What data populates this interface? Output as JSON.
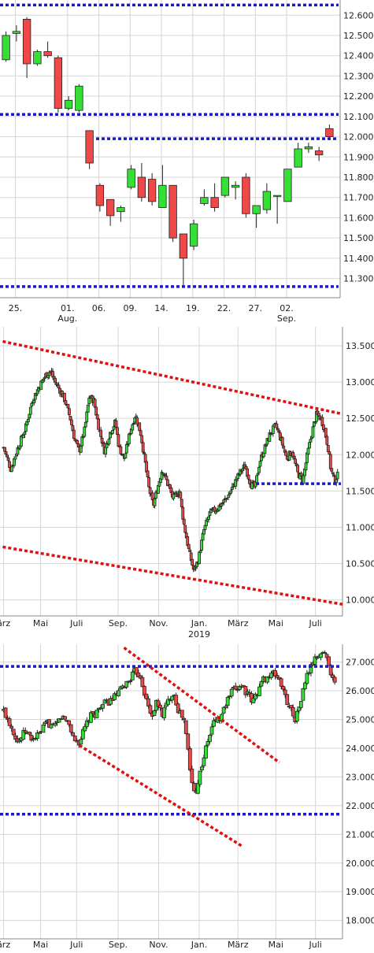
{
  "colors": {
    "up": "#35e035",
    "down": "#ee4848",
    "blue_line": "#1a1acc",
    "red_line": "#e01010",
    "grid": "#d6d6d6"
  },
  "chart_data": [
    {
      "type": "candlestick",
      "y_ticks": [
        "12.600",
        "12.500",
        "12.400",
        "12.300",
        "12.200",
        "12.100",
        "12.000",
        "11.900",
        "11.800",
        "11.700",
        "11.600",
        "11.500",
        "11.400",
        "11.300"
      ],
      "ylim": [
        11.205,
        12.675
      ],
      "x_ticks": [
        {
          "label": "25.",
          "sub": "",
          "i": 0.9
        },
        {
          "label": "01.",
          "sub": "Aug.",
          "i": 5.9
        },
        {
          "label": "06.",
          "sub": "",
          "i": 8.9
        },
        {
          "label": "09.",
          "sub": "",
          "i": 11.9
        },
        {
          "label": "14.",
          "sub": "",
          "i": 14.9
        },
        {
          "label": "19.",
          "sub": "",
          "i": 17.9
        },
        {
          "label": "22.",
          "sub": "",
          "i": 20.9
        },
        {
          "label": "27.",
          "sub": "",
          "i": 23.9
        },
        {
          "label": "02.",
          "sub": "Sep.",
          "i": 26.9
        }
      ],
      "candles": [
        {
          "o": 12.38,
          "h": 12.52,
          "l": 12.37,
          "c": 12.5
        },
        {
          "o": 12.51,
          "h": 12.55,
          "l": 12.47,
          "c": 12.52
        },
        {
          "o": 12.58,
          "h": 12.59,
          "l": 12.29,
          "c": 12.36
        },
        {
          "o": 12.36,
          "h": 12.43,
          "l": 12.35,
          "c": 12.42
        },
        {
          "o": 12.42,
          "h": 12.47,
          "l": 12.39,
          "c": 12.4
        },
        {
          "o": 12.39,
          "h": 12.4,
          "l": 12.12,
          "c": 12.14
        },
        {
          "o": 12.14,
          "h": 12.2,
          "l": 12.13,
          "c": 12.18
        },
        {
          "o": 12.13,
          "h": 12.26,
          "l": 12.12,
          "c": 12.25
        },
        {
          "o": 12.03,
          "h": 12.03,
          "l": 11.84,
          "c": 11.87
        },
        {
          "o": 11.76,
          "h": 11.77,
          "l": 11.63,
          "c": 11.66
        },
        {
          "o": 11.69,
          "h": 11.69,
          "l": 11.56,
          "c": 11.61
        },
        {
          "o": 11.63,
          "h": 11.66,
          "l": 11.58,
          "c": 11.65
        },
        {
          "o": 11.75,
          "h": 11.86,
          "l": 11.74,
          "c": 11.84
        },
        {
          "o": 11.8,
          "h": 11.87,
          "l": 11.68,
          "c": 11.7
        },
        {
          "o": 11.79,
          "h": 11.82,
          "l": 11.66,
          "c": 11.68
        },
        {
          "o": 11.65,
          "h": 11.86,
          "l": 11.65,
          "c": 11.76
        },
        {
          "o": 11.76,
          "h": 11.76,
          "l": 11.48,
          "c": 11.5
        },
        {
          "o": 11.52,
          "h": 11.52,
          "l": 11.26,
          "c": 11.4
        },
        {
          "o": 11.46,
          "h": 11.59,
          "l": 11.44,
          "c": 11.57
        },
        {
          "o": 11.67,
          "h": 11.74,
          "l": 11.66,
          "c": 11.7
        },
        {
          "o": 11.7,
          "h": 11.77,
          "l": 11.63,
          "c": 11.65
        },
        {
          "o": 11.71,
          "h": 11.8,
          "l": 11.7,
          "c": 11.8
        },
        {
          "o": 11.75,
          "h": 11.78,
          "l": 11.69,
          "c": 11.76
        },
        {
          "o": 11.8,
          "h": 11.82,
          "l": 11.6,
          "c": 11.62
        },
        {
          "o": 11.62,
          "h": 11.66,
          "l": 11.55,
          "c": 11.66
        },
        {
          "o": 11.64,
          "h": 11.77,
          "l": 11.62,
          "c": 11.73
        },
        {
          "o": 11.71,
          "h": 11.71,
          "l": 11.57,
          "c": 11.71
        },
        {
          "o": 11.68,
          "h": 11.84,
          "l": 11.68,
          "c": 11.84
        },
        {
          "o": 11.85,
          "h": 11.97,
          "l": 11.85,
          "c": 11.94
        },
        {
          "o": 11.94,
          "h": 11.97,
          "l": 11.92,
          "c": 11.95
        },
        {
          "o": 11.93,
          "h": 11.95,
          "l": 11.88,
          "c": 11.91
        },
        {
          "o": 12.04,
          "h": 12.06,
          "l": 11.99,
          "c": 12.0
        }
      ],
      "hlines": [
        12.65,
        12.11,
        11.99,
        11.26
      ]
    },
    {
      "type": "candlestick",
      "y_ticks": [
        "13.500",
        "13.000",
        "12.500",
        "12.000",
        "11.500",
        "11.000",
        "10.500",
        "10.000"
      ],
      "ylim": [
        9.78,
        13.76
      ],
      "x_ticks": [
        {
          "label": "ärz",
          "sub": "",
          "t": 0
        },
        {
          "label": "Mai",
          "sub": "",
          "t": 2.05
        },
        {
          "label": "Juli",
          "sub": "",
          "t": 4.05
        },
        {
          "label": "Sep.",
          "sub": "",
          "t": 6.35
        },
        {
          "label": "Nov.",
          "sub": "",
          "t": 8.6
        },
        {
          "label": "Jan.",
          "sub": "2019",
          "t": 10.85
        },
        {
          "label": "März",
          "sub": "",
          "t": 13.0
        },
        {
          "label": "Mai",
          "sub": "",
          "t": 15.1
        },
        {
          "label": "Juli",
          "sub": "",
          "t": 17.3
        }
      ],
      "close_path": [
        [
          0,
          12.1
        ],
        [
          0.4,
          11.8
        ],
        [
          0.8,
          12.1
        ],
        [
          1.2,
          12.35
        ],
        [
          1.6,
          12.75
        ],
        [
          2.0,
          12.95
        ],
        [
          2.35,
          13.1
        ],
        [
          2.6,
          13.15
        ],
        [
          2.85,
          13.0
        ],
        [
          3.1,
          12.9
        ],
        [
          3.4,
          12.75
        ],
        [
          3.7,
          12.5
        ],
        [
          3.95,
          12.2
        ],
        [
          4.2,
          12.05
        ],
        [
          4.5,
          12.35
        ],
        [
          4.75,
          12.8
        ],
        [
          5.0,
          12.75
        ],
        [
          5.3,
          12.35
        ],
        [
          5.6,
          12.05
        ],
        [
          5.9,
          12.3
        ],
        [
          6.2,
          12.45
        ],
        [
          6.4,
          12.1
        ],
        [
          6.7,
          11.95
        ],
        [
          7.0,
          12.3
        ],
        [
          7.3,
          12.55
        ],
        [
          7.6,
          12.3
        ],
        [
          7.85,
          11.9
        ],
        [
          8.05,
          11.55
        ],
        [
          8.3,
          11.3
        ],
        [
          8.55,
          11.55
        ],
        [
          8.8,
          11.8
        ],
        [
          9.1,
          11.6
        ],
        [
          9.4,
          11.4
        ],
        [
          9.75,
          11.5
        ],
        [
          10.0,
          11.05
        ],
        [
          10.3,
          10.65
        ],
        [
          10.55,
          10.4
        ],
        [
          10.8,
          10.55
        ],
        [
          11.1,
          10.95
        ],
        [
          11.45,
          11.2
        ],
        [
          11.8,
          11.25
        ],
        [
          12.2,
          11.35
        ],
        [
          12.5,
          11.45
        ],
        [
          12.8,
          11.6
        ],
        [
          13.1,
          11.75
        ],
        [
          13.4,
          11.85
        ],
        [
          13.7,
          11.6
        ],
        [
          13.95,
          11.55
        ],
        [
          14.2,
          11.9
        ],
        [
          14.5,
          12.1
        ],
        [
          14.8,
          12.3
        ],
        [
          15.1,
          12.4
        ],
        [
          15.4,
          12.2
        ],
        [
          15.7,
          11.95
        ],
        [
          16.0,
          12.05
        ],
        [
          16.3,
          11.75
        ],
        [
          16.6,
          11.65
        ],
        [
          16.85,
          12.0
        ],
        [
          17.1,
          12.3
        ],
        [
          17.35,
          12.55
        ],
        [
          17.6,
          12.5
        ],
        [
          17.8,
          12.35
        ],
        [
          18.0,
          12.1
        ],
        [
          18.15,
          11.8
        ],
        [
          18.35,
          11.65
        ],
        [
          18.55,
          11.72
        ]
      ],
      "vol_seed": 7,
      "hlines": [
        {
          "y": 11.6,
          "t0": 14.0,
          "t1": 18.8
        }
      ],
      "trendlines": [
        {
          "t0": -0.05,
          "v0": 13.56,
          "t1": 18.8,
          "v1": 12.56
        },
        {
          "t0": -0.05,
          "v0": 10.73,
          "t1": 18.8,
          "v1": 9.94
        }
      ]
    },
    {
      "type": "candlestick",
      "y_ticks": [
        "27.000",
        "26.000",
        "25.000",
        "24.000",
        "23.000",
        "22.000",
        "21.000",
        "20.000",
        "19.000",
        "18.000"
      ],
      "ylim": [
        17.36,
        27.62
      ],
      "x_ticks": [
        {
          "label": "ärz",
          "sub": "",
          "t": 0
        },
        {
          "label": "Mai",
          "sub": "",
          "t": 2.05
        },
        {
          "label": "Juli",
          "sub": "",
          "t": 4.05
        },
        {
          "label": "Sep.",
          "sub": "",
          "t": 6.35
        },
        {
          "label": "Nov.",
          "sub": "",
          "t": 8.6
        },
        {
          "label": "Jan.",
          "sub": "",
          "t": 10.85
        },
        {
          "label": "März",
          "sub": "",
          "t": 13.0
        },
        {
          "label": "Mai",
          "sub": "",
          "t": 15.1
        },
        {
          "label": "Juli",
          "sub": "",
          "t": 17.3
        }
      ],
      "close_path": [
        [
          0,
          25.3
        ],
        [
          0.4,
          24.8
        ],
        [
          0.8,
          24.2
        ],
        [
          1.2,
          24.6
        ],
        [
          1.6,
          24.3
        ],
        [
          2.0,
          24.5
        ],
        [
          2.4,
          24.9
        ],
        [
          2.8,
          24.7
        ],
        [
          3.2,
          25.1
        ],
        [
          3.6,
          24.9
        ],
        [
          3.9,
          24.3
        ],
        [
          4.2,
          24.2
        ],
        [
          4.5,
          24.7
        ],
        [
          4.8,
          25.1
        ],
        [
          5.1,
          25.2
        ],
        [
          5.4,
          25.5
        ],
        [
          5.8,
          25.6
        ],
        [
          6.2,
          25.8
        ],
        [
          6.6,
          26.1
        ],
        [
          7.0,
          26.4
        ],
        [
          7.3,
          26.7
        ],
        [
          7.6,
          26.5
        ],
        [
          7.9,
          25.7
        ],
        [
          8.2,
          25.1
        ],
        [
          8.5,
          25.6
        ],
        [
          8.8,
          25.2
        ],
        [
          9.1,
          25.6
        ],
        [
          9.4,
          26.0
        ],
        [
          9.7,
          25.3
        ],
        [
          10.0,
          25.0
        ],
        [
          10.2,
          24.1
        ],
        [
          10.4,
          22.9
        ],
        [
          10.6,
          22.4
        ],
        [
          10.8,
          22.9
        ],
        [
          11.1,
          23.7
        ],
        [
          11.4,
          24.4
        ],
        [
          11.7,
          25.0
        ],
        [
          12.0,
          25.0
        ],
        [
          12.3,
          25.5
        ],
        [
          12.6,
          25.9
        ],
        [
          12.9,
          26.1
        ],
        [
          13.2,
          26.2
        ],
        [
          13.5,
          25.9
        ],
        [
          13.8,
          25.6
        ],
        [
          14.1,
          26.0
        ],
        [
          14.4,
          26.4
        ],
        [
          14.7,
          26.5
        ],
        [
          15.0,
          26.6
        ],
        [
          15.3,
          26.4
        ],
        [
          15.6,
          25.8
        ],
        [
          15.9,
          25.4
        ],
        [
          16.2,
          25.0
        ],
        [
          16.5,
          25.7
        ],
        [
          16.8,
          26.5
        ],
        [
          17.1,
          26.9
        ],
        [
          17.4,
          27.2
        ],
        [
          17.7,
          27.35
        ],
        [
          18.0,
          27.1
        ],
        [
          18.2,
          26.5
        ],
        [
          18.45,
          26.1
        ]
      ],
      "vol_seed": 13,
      "hlines": [
        {
          "y": 26.85,
          "t0": -0.2,
          "t1": 18.8
        },
        {
          "y": 21.7,
          "t0": -0.2,
          "t1": 18.8
        }
      ],
      "trendlines": [
        {
          "t0": 6.68,
          "v0": 27.5,
          "t1": 15.3,
          "v1": 23.5
        },
        {
          "t0": 4.2,
          "v0": 24.1,
          "t1": 13.2,
          "v1": 20.6
        }
      ]
    }
  ]
}
